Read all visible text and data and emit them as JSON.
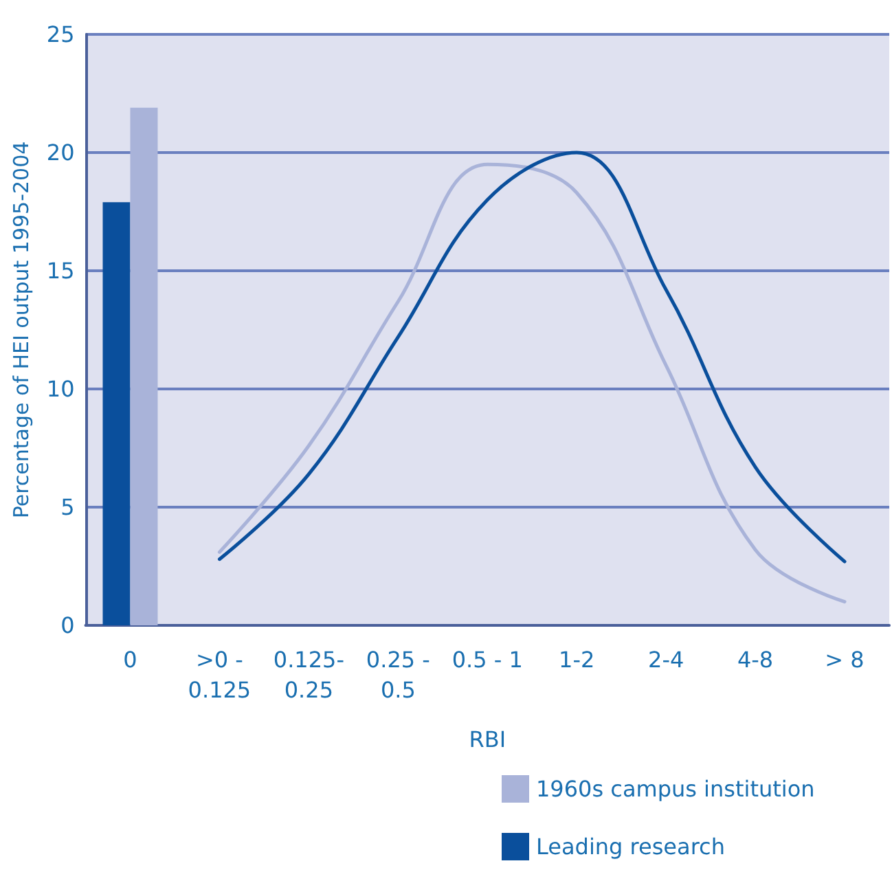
{
  "chart_data": {
    "type": "line",
    "xlabel": "RBI",
    "ylabel": "Percentage of HEI output 1995-2004",
    "categories": [
      "0",
      ">0 -\n0.125",
      "0.125-\n0.25",
      "0.25 -\n0.5",
      "0.5 - 1",
      "1-2",
      "2-4",
      "4-8",
      "> 8"
    ],
    "series": [
      {
        "name": "Leading research",
        "type": "bar",
        "color": "#0a4f9c",
        "values": [
          17.9,
          null,
          null,
          null,
          null,
          null,
          null,
          null,
          null
        ]
      },
      {
        "name": "1960s campus institution",
        "type": "bar",
        "color": "#a9b3d9",
        "values": [
          21.9,
          null,
          null,
          null,
          null,
          null,
          null,
          null,
          null
        ]
      },
      {
        "color": "#a9b3d9",
        "values": [
          null,
          3.1,
          7.6,
          13.7,
          19.5,
          18.3,
          11.0,
          3.2,
          1.0
        ]
      },
      {
        "color": "#0a4f9c",
        "values": [
          null,
          2.8,
          6.4,
          12.2,
          18.0,
          20.0,
          14.2,
          6.7,
          2.7
        ]
      }
    ],
    "ylim": [
      0,
      25
    ],
    "yticks": [
      0,
      5,
      10,
      15,
      20,
      25
    ],
    "grid": "y",
    "legend": "bottom right",
    "marker": "none",
    "line_style": "solid"
  }
}
